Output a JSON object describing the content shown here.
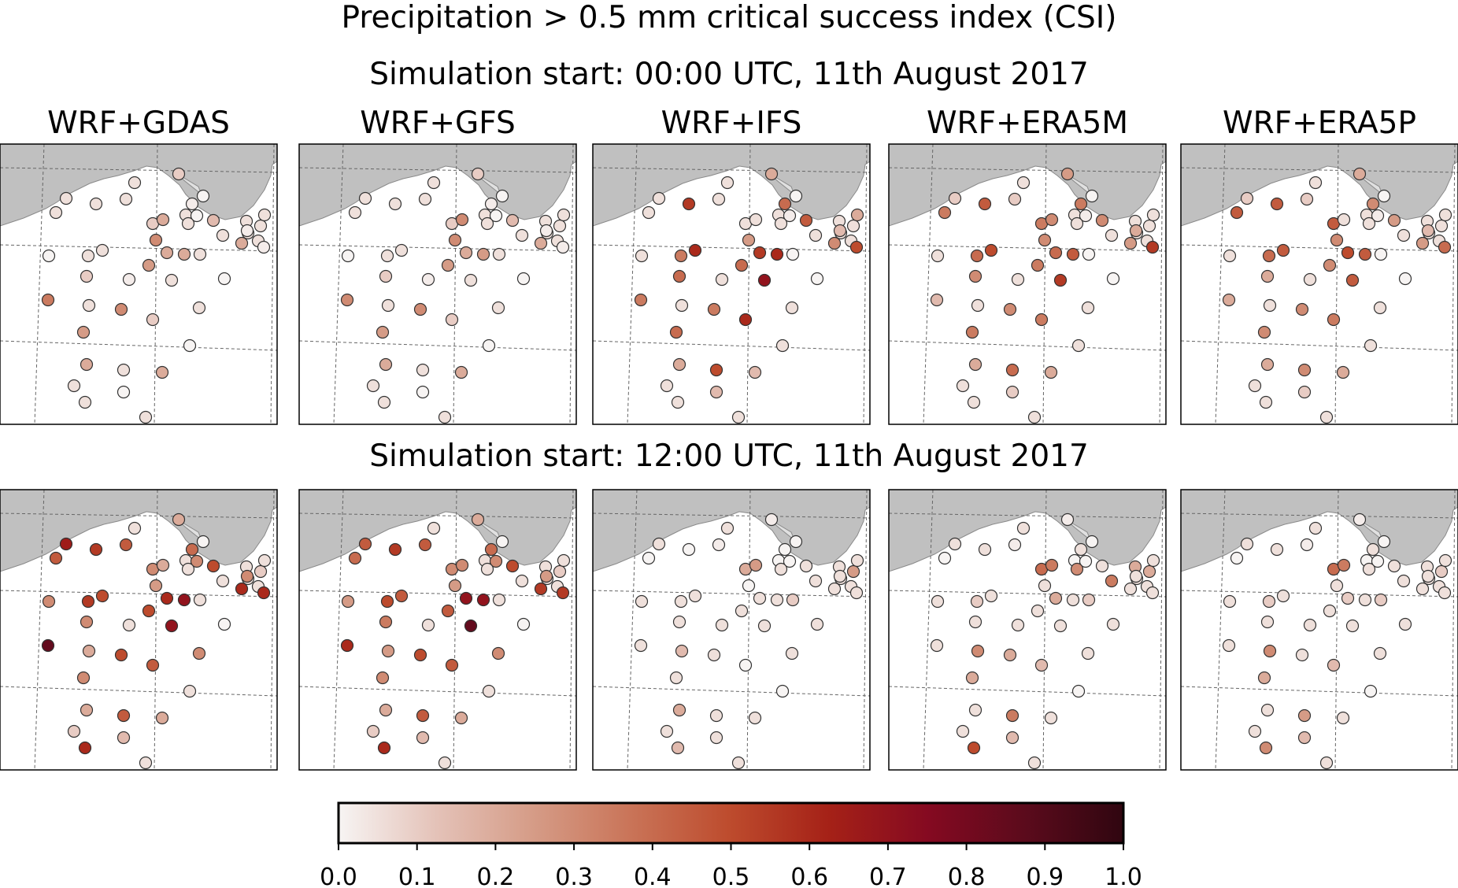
{
  "figure": {
    "title": "Precipitation > 0.5 mm critical success index (CSI)",
    "row_headings": [
      "Simulation start: 00:00 UTC, 11th August 2017",
      "Simulation start: 12:00 UTC, 11th August 2017"
    ],
    "columns": [
      "WRF+GDAS",
      "WRF+GFS",
      "WRF+IFS",
      "WRF+ERA5M",
      "WRF+ERA5P"
    ]
  },
  "colors": {
    "land": "#c0c0c0",
    "coast": "#8a8a8a",
    "grid": "#666666",
    "marker_edge": "#333333",
    "colormap": [
      "#f7f4f3",
      "#e4c2b8",
      "#d59b86",
      "#c97357",
      "#bd4b2d",
      "#a52117",
      "#850a21",
      "#5b0b1c",
      "#300610"
    ]
  },
  "colorbar": {
    "ticks": [
      "0.0",
      "0.1",
      "0.2",
      "0.3",
      "0.4",
      "0.5",
      "0.6",
      "0.7",
      "0.8",
      "0.9",
      "1.0"
    ],
    "range": [
      0,
      1
    ]
  },
  "chart_data": {
    "type": "scatter",
    "title": "Precipitation > 0.5 mm critical success index (CSI)",
    "value_label": "CSI",
    "vmin": 0,
    "vmax": 1,
    "rows": [
      "Simulation start: 00:00 UTC, 11th August 2017",
      "Simulation start: 12:00 UTC, 11th August 2017"
    ],
    "columns": [
      "WRF+GDAS",
      "WRF+GFS",
      "WRF+IFS",
      "WRF+ERA5M",
      "WRF+ERA5P"
    ],
    "panels": [
      {
        "row": 0,
        "col": 0,
        "csi": [
          0.05,
          0.1,
          0.0,
          0.02,
          0.05,
          0.0,
          0.15,
          0.05,
          0.05,
          0.05,
          0.05,
          0.1,
          0.2,
          0.05,
          0.05,
          0.05,
          0.05,
          0.05,
          0.05,
          0.05,
          0.2,
          0.02,
          0.02,
          0.3,
          0.05,
          0.05,
          0.2,
          0.2,
          0.05,
          0.0,
          0.25,
          0.02,
          0.05,
          0.1,
          0.0,
          0.35,
          0.05,
          0.05,
          0.3,
          0.1,
          0.0,
          0.25,
          0.2,
          0.05,
          0.2,
          0.05,
          0.0,
          0.05,
          0.05
        ]
      },
      {
        "row": 0,
        "col": 1,
        "csi": [
          0.05,
          0.1,
          0.0,
          0.02,
          0.05,
          0.0,
          0.15,
          0.05,
          0.05,
          0.05,
          0.05,
          0.1,
          0.3,
          0.05,
          0.05,
          0.05,
          0.05,
          0.05,
          0.05,
          0.05,
          0.2,
          0.02,
          0.02,
          0.3,
          0.05,
          0.05,
          0.25,
          0.2,
          0.05,
          0.0,
          0.25,
          0.02,
          0.05,
          0.1,
          0.0,
          0.3,
          0.05,
          0.05,
          0.3,
          0.1,
          0.0,
          0.25,
          0.2,
          0.05,
          0.2,
          0.05,
          0.0,
          0.05,
          0.05
        ]
      },
      {
        "row": 0,
        "col": 2,
        "csi": [
          0.05,
          0.2,
          0.0,
          0.4,
          0.05,
          0.02,
          0.45,
          0.05,
          0.55,
          0.05,
          0.05,
          0.05,
          0.05,
          0.05,
          0.05,
          0.05,
          0.05,
          0.05,
          0.2,
          0.05,
          0.3,
          0.15,
          0.5,
          0.25,
          0.6,
          0.35,
          0.6,
          0.55,
          0.0,
          0.05,
          0.4,
          0.05,
          0.7,
          0.4,
          0.0,
          0.35,
          0.05,
          0.05,
          0.35,
          0.6,
          0.05,
          0.4,
          0.2,
          0.5,
          0.15,
          0.05,
          0.15,
          0.05,
          0.05
        ]
      },
      {
        "row": 0,
        "col": 3,
        "csi": [
          0.05,
          0.25,
          0.0,
          0.35,
          0.05,
          0.02,
          0.3,
          0.1,
          0.45,
          0.1,
          0.35,
          0.35,
          0.3,
          0.05,
          0.05,
          0.05,
          0.05,
          0.05,
          0.05,
          0.05,
          0.25,
          0.2,
          0.55,
          0.3,
          0.5,
          0.4,
          0.45,
          0.4,
          0.0,
          0.05,
          0.35,
          0.05,
          0.55,
          0.3,
          0.0,
          0.15,
          0.05,
          0.05,
          0.3,
          0.35,
          0.05,
          0.35,
          0.2,
          0.4,
          0.2,
          0.05,
          0.1,
          0.05,
          0.05
        ]
      },
      {
        "row": 0,
        "col": 4,
        "csi": [
          0.05,
          0.2,
          0.0,
          0.3,
          0.05,
          0.02,
          0.25,
          0.1,
          0.45,
          0.1,
          0.45,
          0.45,
          0.05,
          0.05,
          0.05,
          0.05,
          0.05,
          0.05,
          0.05,
          0.05,
          0.25,
          0.15,
          0.4,
          0.3,
          0.45,
          0.4,
          0.45,
          0.5,
          0.0,
          0.05,
          0.3,
          0.05,
          0.45,
          0.2,
          0.0,
          0.2,
          0.05,
          0.05,
          0.3,
          0.35,
          0.05,
          0.3,
          0.2,
          0.3,
          0.2,
          0.05,
          0.1,
          0.05,
          0.05
        ]
      },
      {
        "row": 1,
        "col": 0,
        "csi": [
          0.05,
          0.2,
          0.0,
          0.4,
          0.05,
          0.3,
          0.5,
          0.45,
          0.55,
          0.65,
          0.45,
          0.3,
          0.2,
          0.05,
          0.05,
          0.05,
          0.1,
          0.05,
          0.05,
          0.05,
          0.6,
          0.3,
          0.6,
          0.25,
          0.5,
          0.55,
          0.7,
          0.6,
          0.05,
          0.3,
          0.5,
          0.05,
          0.7,
          0.3,
          0.0,
          0.85,
          0.2,
          0.3,
          0.5,
          0.45,
          0.05,
          0.3,
          0.2,
          0.45,
          0.2,
          0.1,
          0.15,
          0.6,
          0.05
        ]
      },
      {
        "row": 1,
        "col": 1,
        "csi": [
          0.05,
          0.2,
          0.0,
          0.4,
          0.05,
          0.3,
          0.5,
          0.45,
          0.55,
          0.45,
          0.4,
          0.3,
          0.3,
          0.05,
          0.05,
          0.05,
          0.1,
          0.05,
          0.05,
          0.05,
          0.55,
          0.25,
          0.55,
          0.25,
          0.45,
          0.5,
          0.7,
          0.7,
          0.05,
          0.25,
          0.45,
          0.05,
          0.85,
          0.35,
          0.0,
          0.6,
          0.25,
          0.3,
          0.5,
          0.45,
          0.05,
          0.3,
          0.2,
          0.45,
          0.2,
          0.1,
          0.15,
          0.6,
          0.05
        ]
      },
      {
        "row": 1,
        "col": 2,
        "csi": [
          0.05,
          0.02,
          0.0,
          0.0,
          0.0,
          0.0,
          0.05,
          0.02,
          0.0,
          0.05,
          0.0,
          0.2,
          0.25,
          0.05,
          0.05,
          0.05,
          0.25,
          0.05,
          0.05,
          0.05,
          0.05,
          0.05,
          0.05,
          0.0,
          0.05,
          0.05,
          0.05,
          0.05,
          0.1,
          0.05,
          0.05,
          0.05,
          0.05,
          0.05,
          0.05,
          0.05,
          0.15,
          0.05,
          0.05,
          0.0,
          0.0,
          0.05,
          0.2,
          0.05,
          0.05,
          0.05,
          0.05,
          0.15,
          0.05
        ]
      },
      {
        "row": 1,
        "col": 3,
        "csi": [
          0.05,
          0.02,
          0.0,
          0.05,
          0.0,
          0.0,
          0.05,
          0.02,
          0.05,
          0.05,
          0.0,
          0.4,
          0.35,
          0.3,
          0.35,
          0.2,
          0.2,
          0.05,
          0.05,
          0.05,
          0.05,
          0.05,
          0.05,
          0.05,
          0.05,
          0.1,
          0.05,
          0.2,
          0.1,
          0.05,
          0.05,
          0.05,
          0.05,
          0.05,
          0.05,
          0.05,
          0.3,
          0.05,
          0.2,
          0.15,
          0.0,
          0.2,
          0.05,
          0.35,
          0.05,
          0.05,
          0.15,
          0.5,
          0.05
        ]
      },
      {
        "row": 1,
        "col": 4,
        "csi": [
          0.05,
          0.02,
          0.0,
          0.05,
          0.0,
          0.0,
          0.05,
          0.02,
          0.05,
          0.05,
          0.0,
          0.4,
          0.35,
          0.05,
          0.05,
          0.05,
          0.1,
          0.05,
          0.05,
          0.05,
          0.05,
          0.05,
          0.05,
          0.05,
          0.05,
          0.1,
          0.05,
          0.1,
          0.1,
          0.05,
          0.05,
          0.05,
          0.05,
          0.05,
          0.05,
          0.05,
          0.3,
          0.05,
          0.05,
          0.15,
          0.0,
          0.2,
          0.05,
          0.25,
          0.05,
          0.05,
          0.15,
          0.3,
          0.05
        ]
      }
    ]
  }
}
